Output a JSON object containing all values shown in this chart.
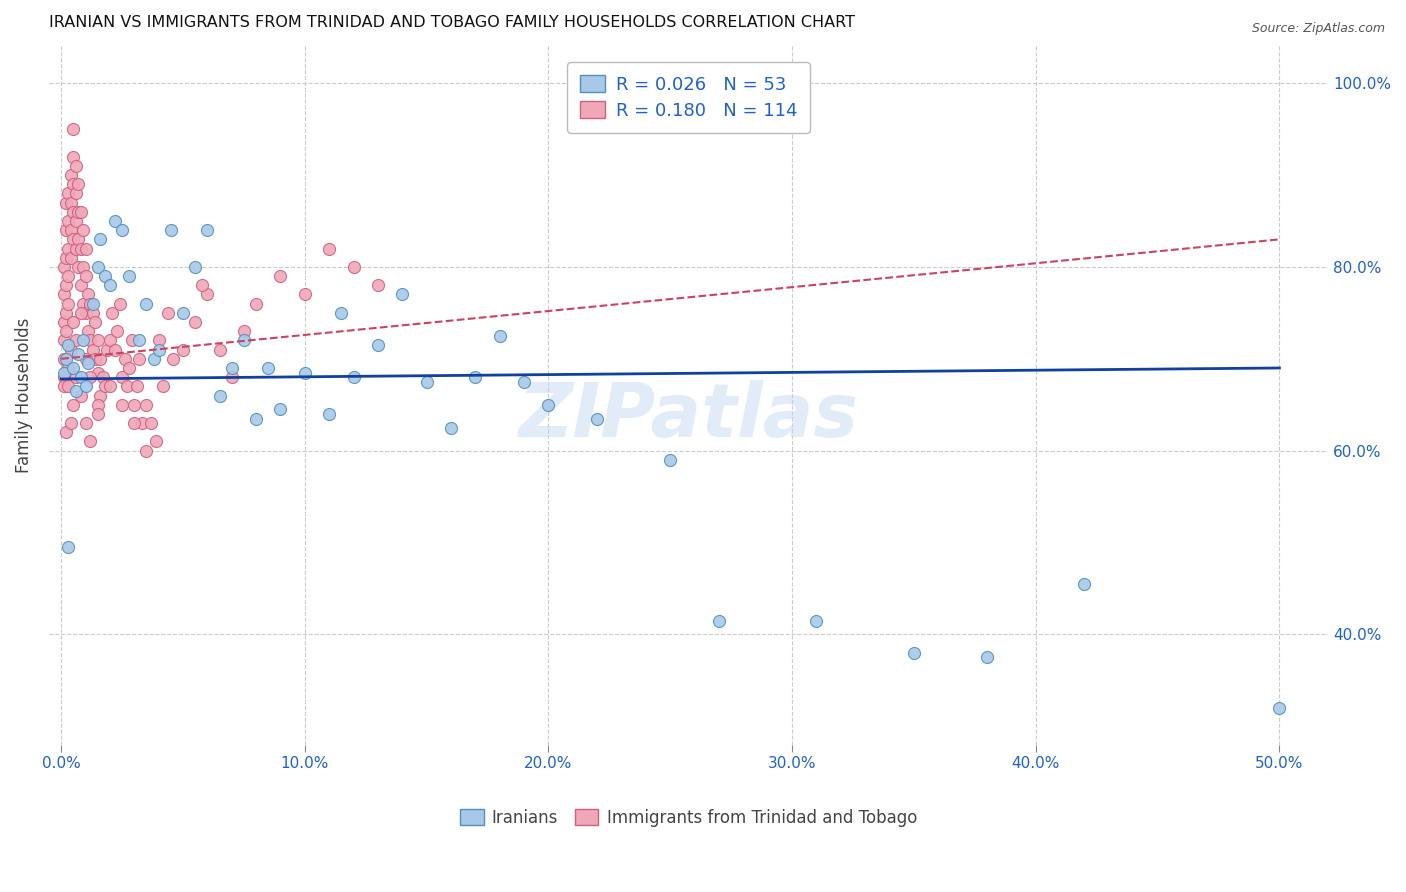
{
  "title": "IRANIAN VS IMMIGRANTS FROM TRINIDAD AND TOBAGO FAMILY HOUSEHOLDS CORRELATION CHART",
  "source": "Source: ZipAtlas.com",
  "ylabel": "Family Households",
  "xlim": [
    -0.005,
    0.52
  ],
  "ylim": [
    0.28,
    1.04
  ],
  "xlabel_vals": [
    0.0,
    0.1,
    0.2,
    0.3,
    0.4,
    0.5
  ],
  "xlabel_ticks": [
    "0.0%",
    "10.0%",
    "20.0%",
    "30.0%",
    "40.0%",
    "50.0%"
  ],
  "ylabel_vals": [
    0.4,
    0.6,
    0.8,
    1.0
  ],
  "ylabel_ticks": [
    "40.0%",
    "60.0%",
    "80.0%",
    "100.0%"
  ],
  "blue_scatter_x": [
    0.001,
    0.002,
    0.003,
    0.005,
    0.006,
    0.007,
    0.008,
    0.009,
    0.01,
    0.011,
    0.013,
    0.015,
    0.016,
    0.018,
    0.02,
    0.022,
    0.025,
    0.028,
    0.032,
    0.035,
    0.038,
    0.04,
    0.045,
    0.05,
    0.055,
    0.06,
    0.065,
    0.07,
    0.075,
    0.08,
    0.085,
    0.09,
    0.1,
    0.11,
    0.115,
    0.12,
    0.13,
    0.14,
    0.15,
    0.16,
    0.17,
    0.18,
    0.19,
    0.2,
    0.22,
    0.25,
    0.27,
    0.31,
    0.35,
    0.38,
    0.42,
    0.5,
    0.003
  ],
  "blue_scatter_y": [
    0.685,
    0.7,
    0.715,
    0.69,
    0.665,
    0.705,
    0.68,
    0.72,
    0.67,
    0.695,
    0.76,
    0.8,
    0.83,
    0.79,
    0.78,
    0.85,
    0.84,
    0.79,
    0.72,
    0.76,
    0.7,
    0.71,
    0.84,
    0.75,
    0.8,
    0.84,
    0.66,
    0.69,
    0.72,
    0.635,
    0.69,
    0.645,
    0.685,
    0.64,
    0.75,
    0.68,
    0.715,
    0.77,
    0.675,
    0.625,
    0.68,
    0.725,
    0.675,
    0.65,
    0.635,
    0.59,
    0.415,
    0.415,
    0.38,
    0.375,
    0.455,
    0.32,
    0.495
  ],
  "pink_scatter_x": [
    0.001,
    0.001,
    0.001,
    0.001,
    0.001,
    0.002,
    0.002,
    0.002,
    0.002,
    0.002,
    0.003,
    0.003,
    0.003,
    0.003,
    0.003,
    0.004,
    0.004,
    0.004,
    0.004,
    0.005,
    0.005,
    0.005,
    0.005,
    0.005,
    0.006,
    0.006,
    0.006,
    0.006,
    0.007,
    0.007,
    0.007,
    0.007,
    0.008,
    0.008,
    0.008,
    0.009,
    0.009,
    0.009,
    0.01,
    0.01,
    0.01,
    0.011,
    0.011,
    0.012,
    0.012,
    0.013,
    0.013,
    0.014,
    0.014,
    0.015,
    0.015,
    0.016,
    0.016,
    0.017,
    0.018,
    0.019,
    0.02,
    0.021,
    0.022,
    0.023,
    0.024,
    0.025,
    0.026,
    0.027,
    0.028,
    0.029,
    0.03,
    0.031,
    0.032,
    0.033,
    0.035,
    0.037,
    0.039,
    0.04,
    0.042,
    0.044,
    0.046,
    0.05,
    0.055,
    0.06,
    0.065,
    0.07,
    0.075,
    0.08,
    0.09,
    0.1,
    0.11,
    0.12,
    0.13,
    0.001,
    0.001,
    0.002,
    0.003,
    0.004,
    0.005,
    0.006,
    0.008,
    0.01,
    0.012,
    0.015,
    0.002,
    0.003,
    0.004,
    0.005,
    0.006,
    0.008,
    0.01,
    0.012,
    0.015,
    0.02,
    0.025,
    0.03,
    0.035,
    0.058
  ],
  "pink_scatter_y": [
    0.68,
    0.72,
    0.74,
    0.77,
    0.8,
    0.75,
    0.78,
    0.81,
    0.84,
    0.87,
    0.76,
    0.79,
    0.82,
    0.85,
    0.88,
    0.81,
    0.84,
    0.87,
    0.9,
    0.83,
    0.86,
    0.89,
    0.92,
    0.95,
    0.82,
    0.85,
    0.88,
    0.91,
    0.8,
    0.83,
    0.86,
    0.89,
    0.78,
    0.82,
    0.86,
    0.76,
    0.8,
    0.84,
    0.75,
    0.79,
    0.82,
    0.73,
    0.77,
    0.72,
    0.76,
    0.71,
    0.75,
    0.7,
    0.74,
    0.685,
    0.72,
    0.66,
    0.7,
    0.68,
    0.67,
    0.71,
    0.72,
    0.75,
    0.71,
    0.73,
    0.76,
    0.68,
    0.7,
    0.67,
    0.69,
    0.72,
    0.65,
    0.67,
    0.7,
    0.63,
    0.65,
    0.63,
    0.61,
    0.72,
    0.67,
    0.75,
    0.7,
    0.71,
    0.74,
    0.77,
    0.71,
    0.68,
    0.73,
    0.76,
    0.79,
    0.77,
    0.82,
    0.8,
    0.78,
    0.67,
    0.7,
    0.73,
    0.69,
    0.71,
    0.74,
    0.72,
    0.75,
    0.7,
    0.68,
    0.65,
    0.62,
    0.67,
    0.63,
    0.65,
    0.68,
    0.66,
    0.63,
    0.61,
    0.64,
    0.67,
    0.65,
    0.63,
    0.6,
    0.78
  ],
  "blue_line_x": [
    0.0,
    0.5
  ],
  "blue_line_y": [
    0.678,
    0.69
  ],
  "pink_line_x": [
    0.0,
    0.5
  ],
  "pink_line_y": [
    0.7,
    0.83
  ],
  "watermark": "ZIPatlas",
  "marker_size": 75,
  "blue_color": "#a8c8e8",
  "pink_color": "#f0a8b8",
  "blue_edge_color": "#5090c0",
  "pink_edge_color": "#d06080",
  "blue_line_color": "#1040a0",
  "pink_line_color": "#d04060",
  "grid_color": "#cccccc",
  "title_fontsize": 11.5,
  "tick_label_color": "#2060d0",
  "legend_R_blue": "0.026",
  "legend_N_blue": "53",
  "legend_R_pink": "0.180",
  "legend_N_pink": "114"
}
